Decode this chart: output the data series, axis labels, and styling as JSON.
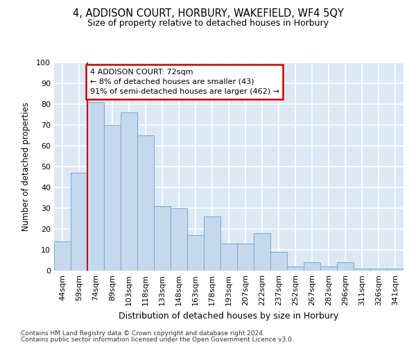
{
  "title1": "4, ADDISON COURT, HORBURY, WAKEFIELD, WF4 5QY",
  "title2": "Size of property relative to detached houses in Horbury",
  "xlabel": "Distribution of detached houses by size in Horbury",
  "ylabel": "Number of detached properties",
  "categories": [
    "44sqm",
    "59sqm",
    "74sqm",
    "89sqm",
    "103sqm",
    "118sqm",
    "133sqm",
    "148sqm",
    "163sqm",
    "178sqm",
    "193sqm",
    "207sqm",
    "222sqm",
    "237sqm",
    "252sqm",
    "267sqm",
    "282sqm",
    "296sqm",
    "311sqm",
    "326sqm",
    "341sqm"
  ],
  "values": [
    14,
    47,
    81,
    70,
    76,
    65,
    31,
    30,
    17,
    26,
    13,
    13,
    18,
    9,
    2,
    4,
    2,
    4,
    1,
    1,
    1
  ],
  "bar_color": "#c5d9ee",
  "bar_edge_color": "#7bafd4",
  "bg_color": "#dce9f5",
  "grid_color": "#ffffff",
  "annotation_line1": "4 ADDISON COURT: 72sqm",
  "annotation_line2": "← 8% of detached houses are smaller (43)",
  "annotation_line3": "91% of semi-detached houses are larger (462) →",
  "annotation_border_color": "#cc0000",
  "red_line_x": 2,
  "ylim": [
    0,
    100
  ],
  "yticks": [
    0,
    10,
    20,
    30,
    40,
    50,
    60,
    70,
    80,
    90,
    100
  ],
  "footer1": "Contains HM Land Registry data © Crown copyright and database right 2024.",
  "footer2": "Contains public sector information licensed under the Open Government Licence v3.0."
}
